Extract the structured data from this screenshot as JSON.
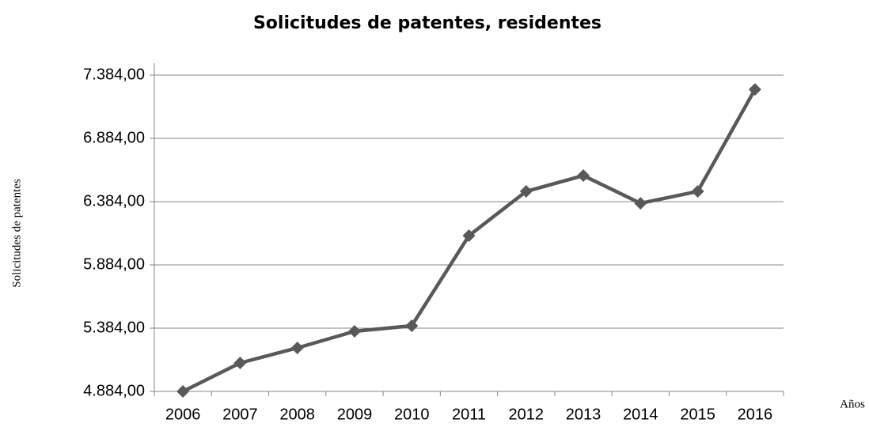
{
  "chart_data": {
    "type": "line",
    "title": "Solicitudes de patentes, residentes",
    "y_label": "Solicitudes de patentes",
    "x_label": "Años",
    "categories": [
      "2006",
      "2007",
      "2008",
      "2009",
      "2010",
      "2011",
      "2012",
      "2013",
      "2014",
      "2015",
      "2016"
    ],
    "series": [
      {
        "name": "Solicitudes de patentes, residentes",
        "color": "#595959",
        "values": [
          4884,
          5109,
          5228,
          5359,
          5403,
          6115,
          6465,
          6590,
          6371,
          6465,
          7271
        ]
      }
    ],
    "ylim": [
      4884,
      7384
    ],
    "yticks": [
      {
        "value": 4884,
        "label": "4.884,00"
      },
      {
        "value": 5384,
        "label": "5.384,00"
      },
      {
        "value": 5884,
        "label": "5.884,00"
      },
      {
        "value": 6384,
        "label": "6.384,00"
      },
      {
        "value": 6884,
        "label": "6.884,00"
      },
      {
        "value": 7384,
        "label": "7.384,00"
      }
    ],
    "grid": true
  }
}
